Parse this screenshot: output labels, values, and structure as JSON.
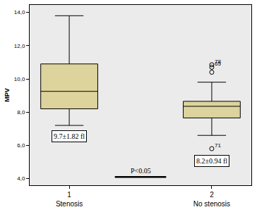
{
  "chart_data": {
    "type": "box",
    "y_label": "MPV",
    "categories": [
      "1",
      "2"
    ],
    "category_names": [
      "Stenosis",
      "No stenosis"
    ],
    "color": "#dcd49c",
    "boxes": [
      {
        "min": 7.2,
        "q1": 8.2,
        "median": 9.25,
        "q3": 10.9,
        "max": 13.8,
        "outliers": [],
        "summary": "9.7±1.82 fl"
      },
      {
        "min": 6.6,
        "q1": 7.65,
        "median": 8.35,
        "q3": 8.65,
        "max": 9.8,
        "outliers": [
          {
            "value": 10.85,
            "label": "78"
          },
          {
            "value": 10.7,
            "label": "65"
          },
          {
            "value": 10.4
          },
          {
            "value": 5.8,
            "label": "71"
          }
        ],
        "summary": "8.2±0.94 fl"
      }
    ],
    "annotations": [
      "P<0.05"
    ],
    "ylim": [
      3.6,
      14.45
    ],
    "yticks": [
      {
        "value": 4,
        "label": "4,0"
      },
      {
        "value": 6,
        "label": "6,0"
      },
      {
        "value": 8,
        "label": "8,0"
      },
      {
        "value": 10,
        "label": "10,0"
      },
      {
        "value": 12,
        "label": "12,0"
      },
      {
        "value": 14,
        "label": "14,0"
      }
    ]
  }
}
